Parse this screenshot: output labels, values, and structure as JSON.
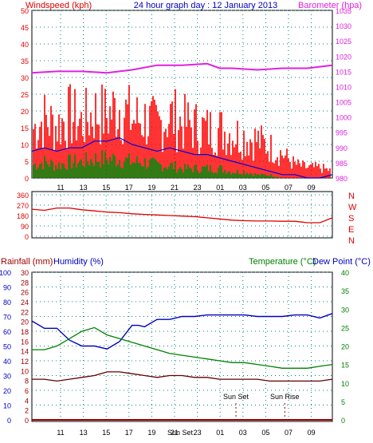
{
  "header": {
    "title": "24 hour graph day : 12 January 2013",
    "left_label": "Windspeed (kph)",
    "right_label": "Barometer (hpa)"
  },
  "colors": {
    "wind_axis": "#e00000",
    "barometer": "#e020e0",
    "title": "#0000c0",
    "gust": "#ff0000",
    "avg": "#0000dd",
    "low": "#008000",
    "direction": "#e00000",
    "rain_axis": "#a00000",
    "humidity": "#0000c0",
    "temperature": "#008000",
    "dew_point": "#600000",
    "grid": "#008080"
  },
  "chart_data": [
    {
      "type": "line",
      "name": "wind-barometer",
      "x_ticks": [
        "11",
        "13",
        "15",
        "17",
        "19",
        "21",
        "23",
        "01",
        "03",
        "05",
        "07",
        "09"
      ],
      "y_left_ticks": [
        "50",
        "45",
        "40",
        "35",
        "30",
        "25",
        "20",
        "15",
        "10",
        "5",
        "0"
      ],
      "y_right_ticks": [
        "1035",
        "1030",
        "1025",
        "1020",
        "1015",
        "1010",
        "1005",
        "1000",
        "995",
        "990",
        "985",
        "980"
      ],
      "ylim_left": [
        0,
        50
      ],
      "ylim_right": [
        980,
        1035
      ],
      "grid": true,
      "series": [
        {
          "role": "gust",
          "x": [
            10,
            11,
            12,
            13,
            14,
            15,
            16,
            17,
            18,
            19,
            20,
            21,
            22,
            23,
            24,
            25,
            26,
            27,
            28,
            29,
            30,
            31,
            32,
            33,
            34
          ],
          "y": [
            14,
            17,
            15,
            18,
            16,
            19,
            18,
            21,
            17,
            17,
            15,
            18,
            16,
            15,
            14,
            14,
            13,
            12,
            11,
            9,
            7,
            4,
            3,
            3,
            2
          ]
        },
        {
          "role": "avg",
          "x": [
            10,
            11,
            12,
            13,
            14,
            15,
            16,
            17,
            18,
            19,
            20,
            21,
            22,
            23,
            24,
            25,
            26,
            27,
            28,
            29,
            30,
            31,
            32,
            33,
            34
          ],
          "y": [
            8,
            9,
            8,
            9,
            9,
            11,
            11,
            12,
            10,
            9,
            8,
            9,
            8,
            7,
            7,
            6,
            5,
            4,
            3,
            2,
            1,
            1,
            0,
            0,
            1
          ]
        },
        {
          "role": "low",
          "x": [
            10,
            11,
            12,
            13,
            14,
            15,
            16,
            17,
            18,
            19,
            20,
            21,
            22,
            23,
            24,
            25,
            26,
            27,
            28,
            29,
            30,
            31,
            32,
            33,
            34
          ],
          "y": [
            4,
            5,
            4,
            5,
            5,
            6,
            6,
            6,
            5,
            5,
            4,
            4,
            3,
            3,
            3,
            3,
            2,
            2,
            1,
            1,
            0,
            0,
            0,
            0,
            0
          ]
        },
        {
          "role": "barometer",
          "x": [
            10,
            12,
            14,
            16,
            18,
            20,
            22,
            24,
            25,
            26,
            28,
            30,
            32,
            34
          ],
          "y": [
            1014.5,
            1015,
            1015,
            1014.5,
            1015.5,
            1017,
            1017,
            1017.5,
            1016,
            1016,
            1015.5,
            1016,
            1016,
            1017
          ]
        }
      ]
    },
    {
      "type": "line",
      "name": "wind-direction",
      "y_ticks": [
        "360",
        "270",
        "180",
        "90",
        "0"
      ],
      "ylim": [
        0,
        360
      ],
      "compass": [
        "N",
        "W",
        "S",
        "E",
        "N"
      ],
      "series": [
        {
          "role": "direction",
          "x": [
            10,
            11,
            12,
            13,
            14,
            15,
            16,
            17,
            18,
            19,
            20,
            21,
            22,
            23,
            24,
            25,
            26,
            27,
            28,
            29,
            30,
            31,
            32,
            33,
            34
          ],
          "y": [
            235,
            225,
            245,
            245,
            230,
            220,
            210,
            205,
            195,
            190,
            185,
            180,
            175,
            170,
            160,
            150,
            140,
            135,
            132,
            132,
            130,
            130,
            118,
            118,
            160
          ]
        }
      ]
    },
    {
      "type": "line",
      "name": "temp-humidity-rain",
      "labels": {
        "rainfall": "Rainfall (mm)",
        "humidity": "Humidity (%)",
        "temperature": "Temperature (°C)",
        "dew_point": "Dew Point (°C)"
      },
      "y_humidity_ticks": [
        "100",
        "90",
        "80",
        "70",
        "60",
        "50",
        "40",
        "30",
        "20",
        "10",
        "0"
      ],
      "y_rain_ticks": [
        "30",
        "28",
        "26",
        "24",
        "22",
        "20",
        "18",
        "16",
        "14",
        "12",
        "10",
        "8",
        "6",
        "4",
        "2",
        "0"
      ],
      "y_temp_ticks": [
        "40",
        "35",
        "30",
        "25",
        "20",
        "15",
        "10",
        "5",
        "0"
      ],
      "ylim_humidity": [
        0,
        100
      ],
      "ylim_temp": [
        0,
        40
      ],
      "annotations": [
        {
          "text": "Sun Set",
          "x": 26.3
        },
        {
          "text": "Sun Rise",
          "x": 30.2
        }
      ],
      "x_ticks": [
        "11",
        "13",
        "15",
        "17",
        "19",
        "21",
        "Sun Set",
        "23",
        "01",
        "03",
        "05",
        "07",
        "09"
      ],
      "series": [
        {
          "role": "humidity",
          "x": [
            10,
            11,
            12,
            13,
            14,
            15,
            16,
            17,
            18,
            18.5,
            19,
            20,
            21,
            22,
            23,
            24,
            25,
            26,
            27,
            28,
            29,
            30,
            31,
            32,
            33,
            34
          ],
          "y": [
            67,
            62,
            62,
            54,
            50,
            50,
            48,
            53,
            64,
            64,
            63,
            68,
            68,
            70,
            70,
            71,
            71,
            71,
            71,
            70,
            70,
            70,
            71,
            71,
            69,
            72
          ]
        },
        {
          "role": "temperature",
          "x": [
            10,
            11,
            12,
            13,
            14,
            15,
            16,
            17,
            18,
            19,
            20,
            21,
            22,
            23,
            24,
            25,
            26,
            27,
            28,
            29,
            30,
            31,
            32,
            33,
            34
          ],
          "y": [
            19,
            19,
            20,
            22,
            24,
            25,
            23,
            22,
            21,
            20,
            19,
            18,
            17.5,
            17,
            16.5,
            16,
            15.5,
            15.5,
            15,
            14.5,
            14,
            14,
            14,
            14.5,
            15
          ]
        },
        {
          "role": "dew_point",
          "x": [
            10,
            11,
            12,
            13,
            14,
            15,
            16,
            17,
            18,
            19,
            20,
            21,
            22,
            23,
            24,
            25,
            26,
            27,
            28,
            29,
            30,
            31,
            32,
            33,
            34
          ],
          "y": [
            11,
            11,
            10.5,
            11,
            11.5,
            12,
            13,
            13,
            12.5,
            12,
            11.5,
            12,
            12,
            11.5,
            11.5,
            11,
            11,
            11,
            11,
            10.5,
            10.5,
            10.5,
            10.5,
            10.5,
            11
          ]
        },
        {
          "role": "rainfall",
          "x": [
            10,
            34
          ],
          "y": [
            0,
            0
          ]
        }
      ]
    }
  ]
}
